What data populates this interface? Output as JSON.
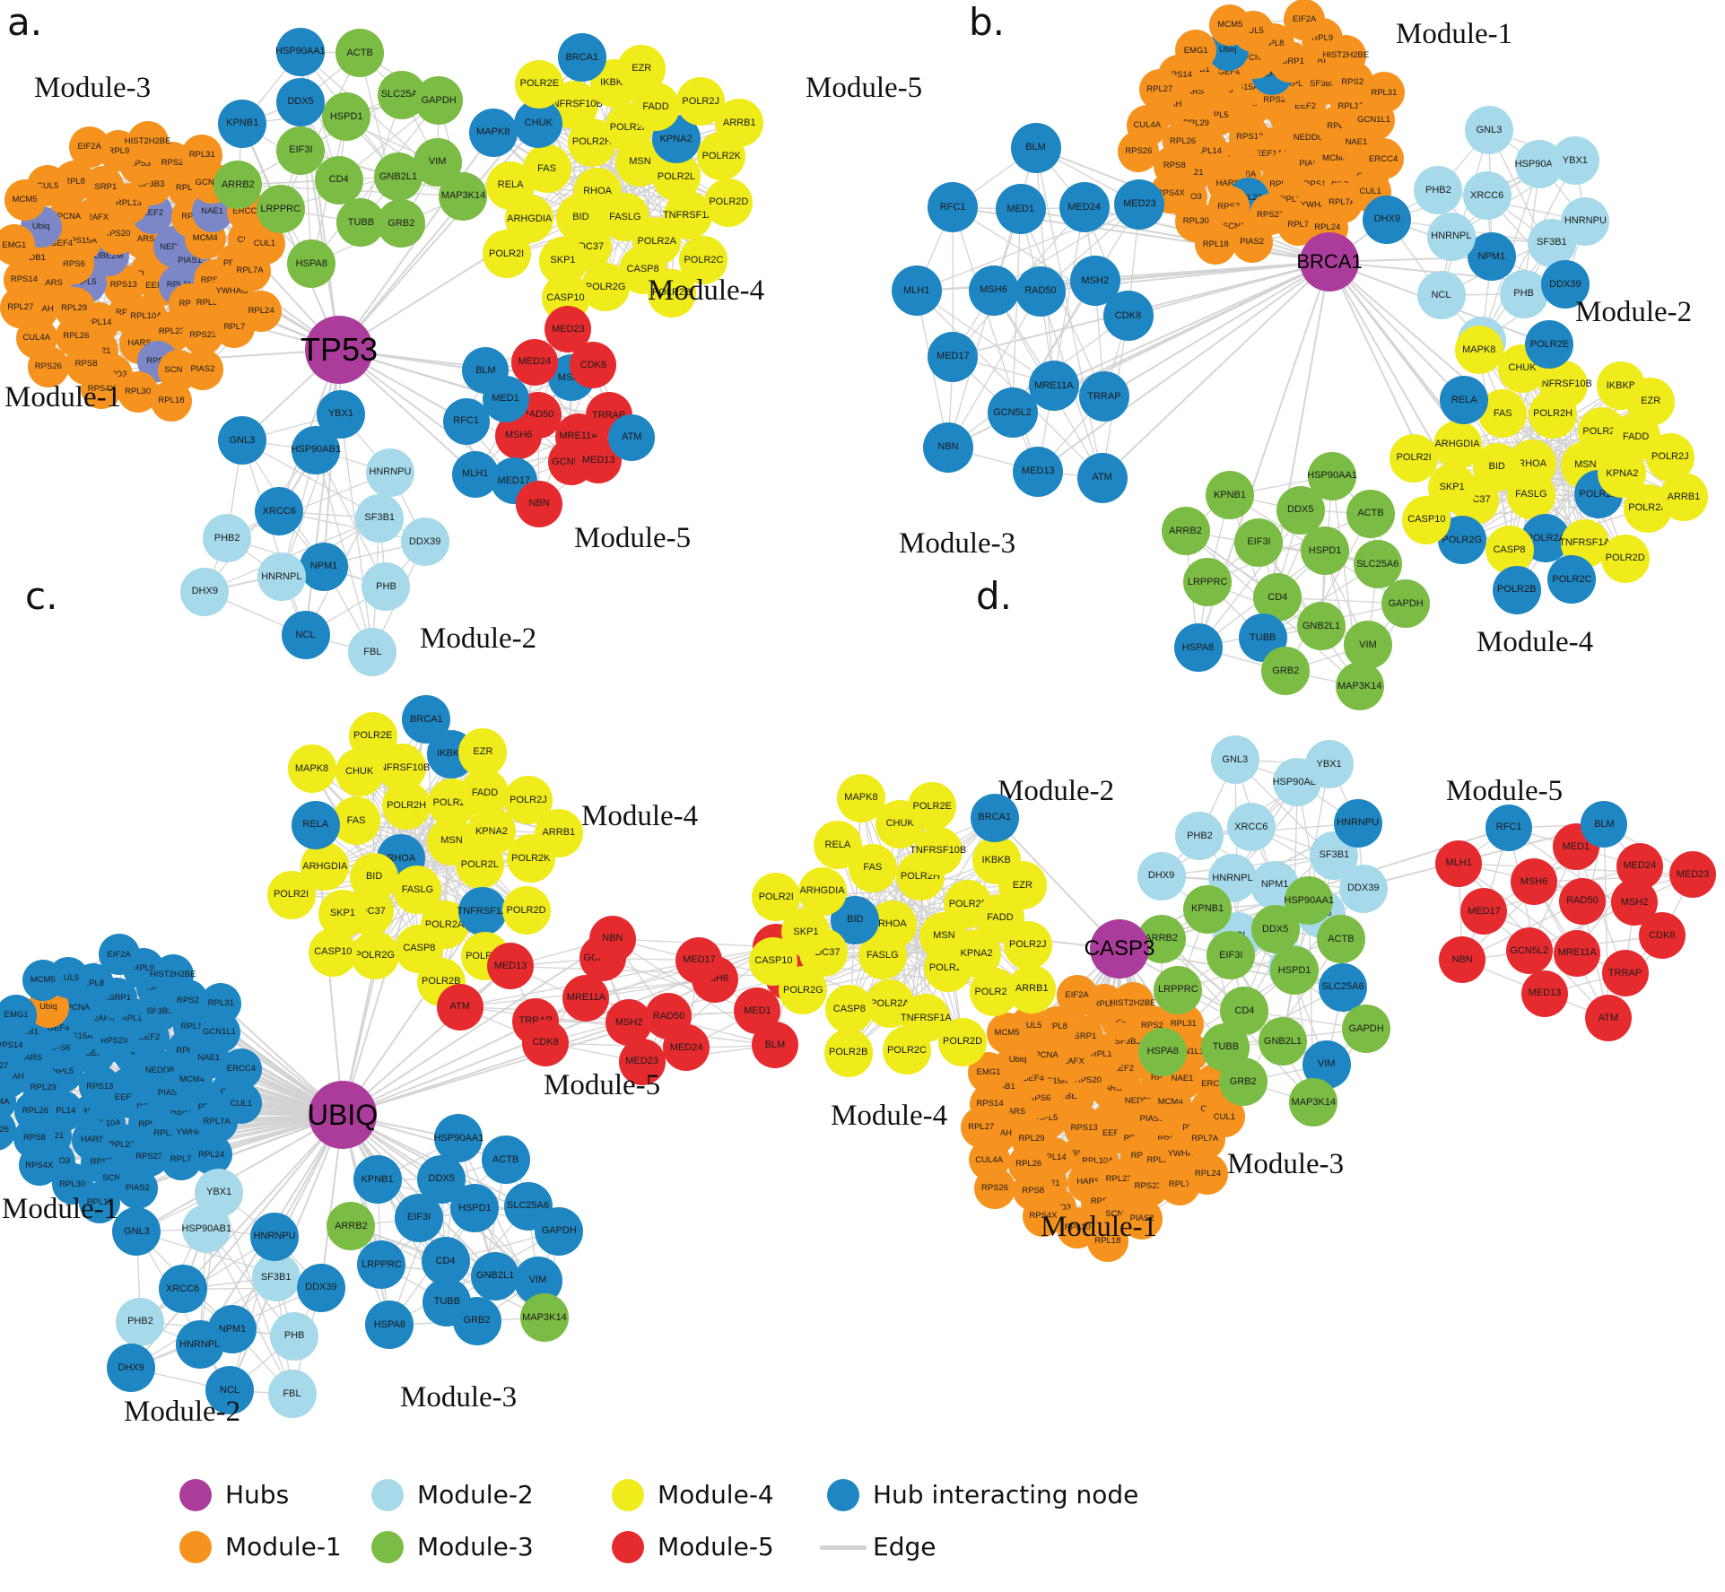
{
  "colors": {
    "hub": "#AC3C9C",
    "module1": "#F6921E",
    "module2": "#A6DAEA",
    "module3": "#7BBC44",
    "module4": "#F0EB1A",
    "module5": "#E62B2F",
    "hub_interacting": "#1E86C2",
    "module1_interacting": "#7B87C7",
    "edge": "#D2D2D2",
    "text": "#111111"
  },
  "gene_sets": {
    "module1": [
      "CUL4B",
      "RPS13",
      "TARS",
      "EEF1A1",
      "UBE2M",
      "NEDD8",
      "RPS16",
      "RPS20",
      "RPL11",
      "RPL5",
      "EEF2",
      "RPL10A",
      "RPS15A",
      "PIAS1",
      "RPL14",
      "RPL13",
      "RPL3",
      "RPS6",
      "RPL6",
      "HARS",
      "H2AFX",
      "RPS11",
      "RPL29",
      "SF3B3",
      "RPL23",
      "ARHGEF4",
      "MCM4",
      "RPL21",
      "SSRP1",
      "RPL35A",
      "KARS",
      "RPL12",
      "RPS7",
      "PCNA",
      "PRPF3",
      "RPL26",
      "RPS3",
      "RPS23",
      "DDB1",
      "NAE1",
      "SUMO3",
      "RPL8",
      "YWHAG",
      "YWHAH",
      "RPS2",
      "SCN1A",
      "Ubiq",
      "CUL2",
      "RPS8",
      "RPL9",
      "RPL7",
      "RPS14",
      "GCN1L1",
      "RPL30",
      "CUL5",
      "RPL7A",
      "CUL4A",
      "HIST2H2BE",
      "PIAS2",
      "EMG1",
      "ERCC4",
      "RPS4X",
      "EIF2A",
      "RPL24",
      "RPL27",
      "RPL31",
      "RPL18",
      "MCM5",
      "CUL1",
      "RPS26"
    ],
    "module2": [
      "NPM1",
      "XRCC6",
      "SF3B1",
      "HNRNPL",
      "HSP90AB1",
      "PHB",
      "PHB2",
      "HNRNPU",
      "NCL",
      "GNL3",
      "DDX39",
      "DHX9",
      "YBX1",
      "FBL"
    ],
    "module3": [
      "CD4",
      "HSPD1",
      "GNB2L1",
      "EIF3I",
      "SLC25A6",
      "TUBB",
      "DDX5",
      "VIM",
      "LRPPRC",
      "ACTB",
      "GRB2",
      "KPNB1",
      "GAPDH",
      "HSPA8",
      "HSP90AA1",
      "MAP3K14",
      "ARRB2"
    ],
    "module4": [
      "RHOA",
      "MSN",
      "FASLG",
      "POLR2H",
      "POLR2L",
      "BID",
      "POLR2F",
      "POLR2A",
      "FAS",
      "KPNA2",
      "CDC37",
      "TNFRSF10B",
      "TNFRSF1A",
      "ARHGDIA",
      "FADD",
      "CASP8",
      "CHUK",
      "POLR2K",
      "SKP1",
      "IKBKB",
      "POLR2C",
      "RELA",
      "POLR2J",
      "POLR2G",
      "POLR2E",
      "POLR2D",
      "POLR2I",
      "EZR",
      "POLR2B",
      "MAPK8",
      "ARRB1",
      "CASP10",
      "BRCA1"
    ],
    "module5": [
      "RAD50",
      "MRE11A",
      "MSH6",
      "MSH2",
      "GCN5L2",
      "MED1",
      "TRRAP",
      "MED17",
      "MED24",
      "MED13",
      "RFC1",
      "CDK8",
      "NBN",
      "BLM",
      "ATM",
      "MLH1",
      "MED23"
    ]
  },
  "panels": [
    {
      "id": "a",
      "letter": "a.",
      "hub": "TP53",
      "modules": [
        {
          "set": "module1",
          "label": "Module-1",
          "color": "module1",
          "interacting": [
            "RPL11",
            "RPL5",
            "EEF2",
            "UBE2M",
            "NEDD8",
            "RPS7",
            "NAE1",
            "Ubiq",
            "PIAS1"
          ],
          "interacting_color": "module1_interacting"
        },
        {
          "set": "module2",
          "label": "Module-2",
          "color": "module2",
          "interacting": [
            "XRCC6",
            "NPM1",
            "HSP90AB1",
            "GNL3",
            "NCL",
            "YBX1"
          ]
        },
        {
          "set": "module3",
          "label": "Module-3",
          "color": "module3",
          "interacting": [
            "DDX5",
            "KPNB1",
            "HSP90AA1"
          ]
        },
        {
          "set": "module4",
          "label": "Module-4",
          "color": "module4",
          "interacting": [
            "KPNA2",
            "CHUK",
            "MAPK8",
            "BRCA1"
          ]
        },
        {
          "set": "module5",
          "label": "Module-5",
          "color": "module5",
          "interacting": [
            "MSH2",
            "MED17",
            "MED1",
            "RFC1",
            "BLM",
            "ATM",
            "MLH1"
          ]
        }
      ]
    },
    {
      "id": "b",
      "letter": "b.",
      "hub": "BRCA1",
      "modules": [
        {
          "set": "module1",
          "label": "Module-1",
          "color": "module1",
          "interacting": [
            "H2AFX",
            "Ubiq",
            "RPL23"
          ]
        },
        {
          "set": "module2",
          "label": "Module-2",
          "color": "module2",
          "interacting": [
            "NPM1",
            "DHX9",
            "DDX39"
          ]
        },
        {
          "set": "module3",
          "label": "Module-3",
          "color": "module3",
          "interacting": [
            "TUBB",
            "HSPA8"
          ]
        },
        {
          "set": "module4",
          "label": "Module-4",
          "color": "module4",
          "exclude": [
            "BRCA1"
          ],
          "interacting": [
            "POLR2A",
            "POLR2B",
            "POLR2C",
            "POLR2E",
            "POLR2G",
            "POLR2L",
            "RELA"
          ]
        },
        {
          "set": "module5",
          "label": "Module-5",
          "color": "module5",
          "interacting": "all"
        }
      ]
    },
    {
      "id": "c",
      "letter": "c.",
      "hub": "UBIQ",
      "modules": [
        {
          "set": "module1",
          "label": "Module-1",
          "color": "module1",
          "interacting": "all",
          "overrides": {
            "Ubiq": "module1"
          }
        },
        {
          "set": "module2",
          "label": "Module-2",
          "color": "module2",
          "interacting": [
            "HNRNPL",
            "HNRNPU",
            "XRCC6",
            "NCL",
            "DHX9",
            "GNL3",
            "NPM1",
            "DDX39"
          ]
        },
        {
          "set": "module3",
          "label": "Module-3",
          "color": "module3",
          "interacting": [
            "CD4",
            "HSPD1",
            "GNB2L1",
            "EIF3I",
            "SLC25A6",
            "TUBB",
            "DDX5",
            "VIM",
            "LRPPRC",
            "ACTB",
            "GRB2",
            "KPNB1",
            "GAPDH",
            "HSPA8",
            "HSP90AA1"
          ]
        },
        {
          "set": "module4",
          "label": "Module-4",
          "color": "module4",
          "interacting": [
            "BRCA1",
            "IKBKB",
            "RHOA",
            "TNFRSF1A",
            "RELA"
          ]
        },
        {
          "set": "module5",
          "label": "Module-5",
          "color": "module5",
          "interacting": []
        }
      ]
    },
    {
      "id": "d",
      "letter": "d.",
      "hub": "CASP3",
      "modules": [
        {
          "set": "module1",
          "label": "Module-1",
          "color": "module1",
          "interacting": []
        },
        {
          "set": "module2",
          "label": "Module-2",
          "color": "module2",
          "interacting": [
            "HNRNPU"
          ]
        },
        {
          "set": "module3",
          "label": "Module-3",
          "color": "module3",
          "interacting": [
            "VIM",
            "SLC25A6"
          ]
        },
        {
          "set": "module4",
          "label": "Module-4",
          "color": "module4",
          "interacting": [
            "BRCA1",
            "BID"
          ]
        },
        {
          "set": "module5",
          "label": "Module-5",
          "color": "module5",
          "interacting": [
            "RFC1",
            "BLM"
          ]
        }
      ]
    }
  ],
  "legend": {
    "items": [
      {
        "label": "Hubs",
        "color": "hub",
        "shape": "circle"
      },
      {
        "label": "Module-1",
        "color": "module1",
        "shape": "circle"
      },
      {
        "label": "Module-2",
        "color": "module2",
        "shape": "circle"
      },
      {
        "label": "Module-3",
        "color": "module3",
        "shape": "circle"
      },
      {
        "label": "Module-4",
        "color": "module4",
        "shape": "circle"
      },
      {
        "label": "Module-5",
        "color": "module5",
        "shape": "circle"
      },
      {
        "label": "Hub interacting node",
        "color": "hub_interacting",
        "shape": "circle"
      },
      {
        "label": "Edge",
        "color": "edge",
        "shape": "line"
      }
    ]
  }
}
